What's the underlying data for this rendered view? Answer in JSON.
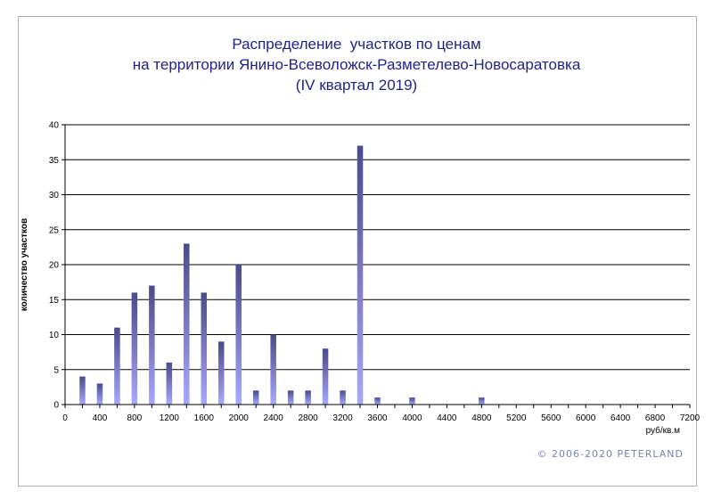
{
  "chart_data": {
    "type": "bar",
    "title": [
      "Распределение  участков по ценам",
      "на территории Янино-Всеволожск-Разметелево-Новосаратовка",
      "(IV квартал 2019)"
    ],
    "ylabel": "количество участков",
    "xlabel": "руб/кв.м",
    "ylim": [
      0,
      40
    ],
    "yticks": [
      0,
      5,
      10,
      15,
      20,
      25,
      30,
      35,
      40
    ],
    "xlim": [
      0,
      7200
    ],
    "xticks": [
      0,
      400,
      800,
      1200,
      1600,
      2000,
      2400,
      2800,
      3200,
      3600,
      4000,
      4400,
      4800,
      5200,
      5600,
      6000,
      6400,
      6800,
      7200
    ],
    "grid": "horizontal",
    "x": [
      200,
      400,
      600,
      800,
      1000,
      1200,
      1400,
      1600,
      1800,
      2000,
      2200,
      2400,
      2600,
      2800,
      3000,
      3200,
      3400,
      3600,
      4000,
      4800
    ],
    "values": [
      4,
      3,
      11,
      16,
      17,
      6,
      23,
      16,
      9,
      20,
      2,
      10,
      2,
      2,
      8,
      2,
      37,
      1,
      1,
      1
    ],
    "colors": {
      "bar_top": "#4a4a8c",
      "bar_bottom": "#a8a8ff",
      "title": "#22228a"
    }
  },
  "copyright": "© 2006-2020  PETERLAND"
}
